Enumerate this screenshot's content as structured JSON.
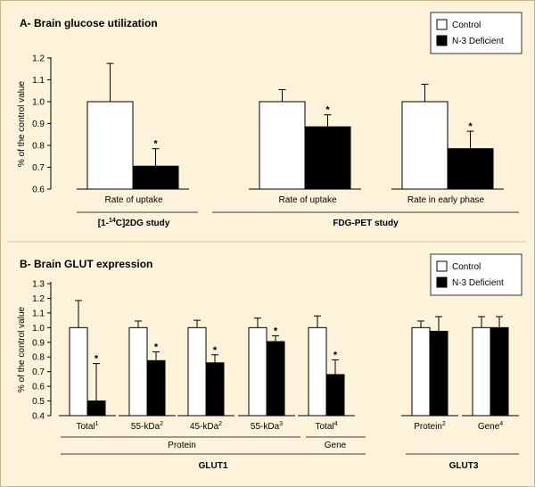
{
  "legend": {
    "control": "Control",
    "deficient": "N-3 Deficient"
  },
  "colors": {
    "control": "#ffffff",
    "deficient": "#000000",
    "background": "#fdf2da"
  },
  "y_axis_label": "% of the control value",
  "chart_data": [
    {
      "type": "bar",
      "title": "A- Brain glucose utilization",
      "ylabel": "% of the control value",
      "ylim": [
        0.6,
        1.2
      ],
      "yticks": [
        "0.6",
        "0.7",
        "0.8",
        "0.9",
        "1.0",
        "1.1",
        "1.2"
      ],
      "legend_position": "top-right",
      "bar_groups": [
        {
          "label": "Rate of uptake",
          "control": {
            "value": 1.0,
            "error": 0.175
          },
          "deficient": {
            "value": 0.705,
            "error": 0.08,
            "significant": true
          }
        },
        {
          "label": "Rate of uptake",
          "control": {
            "value": 1.0,
            "error": 0.055
          },
          "deficient": {
            "value": 0.885,
            "error": 0.055,
            "significant": true
          }
        },
        {
          "label": "Rate in early phase",
          "control": {
            "value": 1.0,
            "error": 0.08
          },
          "deficient": {
            "value": 0.785,
            "error": 0.08,
            "significant": true
          }
        }
      ],
      "study_labels": [
        {
          "prefix": "[1-",
          "sup": "14",
          "suffix": "C]2DG study"
        },
        {
          "prefix": "FDG-PET study",
          "sup": "",
          "suffix": ""
        }
      ],
      "significance_marker": "*"
    },
    {
      "type": "bar",
      "title": "B- Brain GLUT expression",
      "ylabel": "% of the control value",
      "ylim": [
        0.4,
        1.3
      ],
      "yticks": [
        "0.4",
        "0.5",
        "0.6",
        "0.7",
        "0.8",
        "0.9",
        "1.0",
        "1.1",
        "1.2",
        "1.3"
      ],
      "legend_position": "top-right",
      "bar_groups": [
        {
          "label": "Total",
          "sup": "1",
          "control": {
            "value": 1.0,
            "error": 0.185
          },
          "deficient": {
            "value": 0.5,
            "error": 0.255,
            "significant": true
          }
        },
        {
          "label": "55-kDa",
          "sup": "2",
          "control": {
            "value": 1.0,
            "error": 0.045
          },
          "deficient": {
            "value": 0.775,
            "error": 0.06,
            "significant": true
          }
        },
        {
          "label": "45-kDa",
          "sup": "2",
          "control": {
            "value": 1.0,
            "error": 0.05
          },
          "deficient": {
            "value": 0.76,
            "error": 0.055,
            "significant": true
          }
        },
        {
          "label": "55-kDa",
          "sup": "3",
          "control": {
            "value": 1.0,
            "error": 0.065
          },
          "deficient": {
            "value": 0.905,
            "error": 0.04,
            "significant": true
          }
        },
        {
          "label": "Total",
          "sup": "4",
          "control": {
            "value": 1.0,
            "error": 0.08
          },
          "deficient": {
            "value": 0.68,
            "error": 0.1,
            "significant": true
          }
        },
        {
          "label": "Protein",
          "sup": "2",
          "control": {
            "value": 1.0,
            "error": 0.045
          },
          "deficient": {
            "value": 0.975,
            "error": 0.1,
            "significant": false
          }
        },
        {
          "label": "Gene",
          "sup": "4",
          "control": {
            "value": 1.0,
            "error": 0.075
          },
          "deficient": {
            "value": 1.0,
            "error": 0.075,
            "significant": false
          }
        }
      ],
      "sub_labels": [
        "Protein",
        "Gene"
      ],
      "group_labels": [
        "GLUT1",
        "GLUT3"
      ],
      "significance_marker": "*"
    }
  ]
}
